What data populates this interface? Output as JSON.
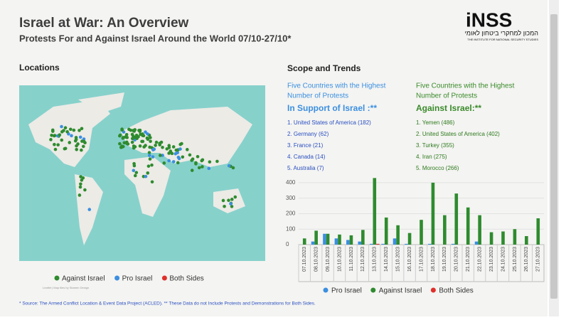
{
  "header": {
    "title": "Israel at War: An Overview",
    "subtitle": "Protests For and Against Israel Around the World 07/10-27/10*",
    "logo": {
      "name": "iNSS",
      "hebrew": "המכון למחקרי ביטחון לאומי",
      "english": "THE INSTITUTE FOR NATIONAL SECURITY STUDIES"
    }
  },
  "locations": {
    "title": "Locations"
  },
  "scope": {
    "title": "Scope and Trends",
    "support": {
      "heading": "Five Countries with the Highest Number of Protests",
      "subheading": "In Support of Israel :**",
      "items": [
        "1. United States of America (182)",
        "2. Germany (62)",
        "3. France (21)",
        "4. Canada (14)",
        "5. Australia (7)"
      ]
    },
    "against": {
      "heading": "Five Countries with the Highest Number of Protests",
      "subheading": "Against Israel:**",
      "items": [
        "1. Yemen (486)",
        "2. United States of America (402)",
        "3. Turkey (355)",
        "4. Iran (275)",
        "5. Morocco (266)"
      ]
    }
  },
  "chart_data": {
    "type": "bar",
    "categories": [
      "07.10.2023",
      "08.10.2023",
      "09.10.2023",
      "10.10.2023",
      "11.10.2023",
      "12.10.2023",
      "13.10.2023",
      "14.10.2023",
      "15.10.2023",
      "16.10.2023",
      "17.10.2023",
      "18.10.2023",
      "19.10.2023",
      "20.10.2023",
      "21.10.2023",
      "22.10.2023",
      "23.10.2023",
      "24.10.2023",
      "25.10.2023",
      "26.10.2023",
      "27.10.2023"
    ],
    "series": [
      {
        "name": "Pro Israel",
        "color": "#3b8fe0",
        "values": [
          0,
          20,
          70,
          40,
          30,
          20,
          5,
          5,
          40,
          5,
          0,
          5,
          0,
          5,
          0,
          20,
          0,
          0,
          0,
          0,
          0
        ]
      },
      {
        "name": "Against Israel",
        "color": "#2e8b2e",
        "values": [
          40,
          90,
          70,
          65,
          60,
          95,
          430,
          175,
          125,
          75,
          160,
          400,
          190,
          330,
          240,
          190,
          80,
          85,
          100,
          55,
          170
        ]
      },
      {
        "name": "Both Sides",
        "color": "#e0302b",
        "values": [
          0,
          0,
          0,
          0,
          0,
          0,
          5,
          0,
          0,
          0,
          0,
          0,
          0,
          0,
          0,
          0,
          0,
          0,
          0,
          0,
          0
        ]
      }
    ],
    "ylim": [
      0,
      450
    ],
    "yticks": [
      0,
      100,
      200,
      300,
      400
    ],
    "grid": true
  },
  "footnote": "* Source: The Armed Conflict Location & Event Data Project (ACLED). ** These Data do not Include Protests and Demonstrations for Both Sides."
}
